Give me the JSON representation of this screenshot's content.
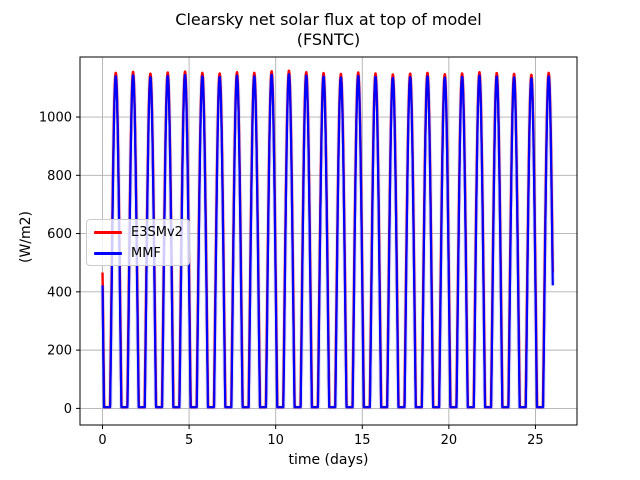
{
  "chart_data": {
    "type": "line",
    "title": "Clearsky net solar flux at top of model",
    "subtitle": "(FSNTC)",
    "xlabel": "time (days)",
    "ylabel": "(W/m2)",
    "xlim": [
      -1.3,
      27.4
    ],
    "ylim": [
      -57,
      1206
    ],
    "xticks": [
      0,
      5,
      10,
      15,
      20,
      25
    ],
    "yticks": [
      0,
      200,
      400,
      600,
      800,
      1000
    ],
    "grid": true,
    "grid_color": "#b0b0b0",
    "frame_color": "#000000",
    "background_color": "#ffffff",
    "legend_position": "center left",
    "diurnal_model": {
      "description": "Daily clear-sky solar pulses. shape(t)=max(0,(a+b*cos(2*pi*(t-noon)/width_scale)))/(a+b); value = night + shape*(daily_peak-night); noon_n = n + noon_offset_days",
      "cos_elevation_coeffs": {
        "a": 0.262,
        "b": 0.604
      },
      "noon_offset_days": 0.765,
      "night_value_wm2": 4,
      "t_start_days": 0.0,
      "t_end_days": 26.0,
      "start_value_wm2": 405,
      "end_value_wm2": 392,
      "num_days": 26
    },
    "series": [
      {
        "name": "E3SMv2",
        "color": "#ff0000",
        "width_scale": 1.035,
        "daily_peaks_wm2": [
          1152,
          1155,
          1149,
          1153,
          1156,
          1152,
          1150,
          1154,
          1152,
          1157,
          1159,
          1154,
          1151,
          1148,
          1153,
          1150,
          1146,
          1149,
          1152,
          1147,
          1150,
          1154,
          1151,
          1148,
          1145,
          1152
        ]
      },
      {
        "name": "MMF",
        "color": "#0000ff",
        "width_scale": 1.0,
        "daily_peaks_wm2": [
          1140,
          1143,
          1137,
          1141,
          1144,
          1140,
          1138,
          1142,
          1140,
          1145,
          1147,
          1142,
          1139,
          1136,
          1141,
          1138,
          1134,
          1137,
          1140,
          1135,
          1138,
          1142,
          1139,
          1136,
          1133,
          1140
        ]
      }
    ]
  }
}
